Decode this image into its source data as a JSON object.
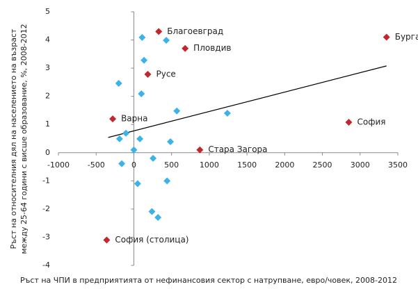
{
  "chart_data": {
    "type": "scatter",
    "xlabel": "Ръст на ЧПИ в предприятията от нефинансовия сектор с натрупване, евро/човек, 2008-2012",
    "ylabel": [
      "Ръст на относителния дял на населението на възраст",
      "между 25-64 години с висше образование, %, 2008-2012"
    ],
    "xlim": [
      -1000,
      3500
    ],
    "xticks": [
      -1000,
      -500,
      0,
      500,
      1000,
      1500,
      2000,
      2500,
      3000,
      3500
    ],
    "ylim": [
      -4,
      5
    ],
    "yticks": [
      -4,
      -3,
      -2,
      -1,
      0,
      1,
      2,
      3,
      4,
      5
    ],
    "series": [
      {
        "color": "#3bb3e8",
        "x": [
          110,
          430,
          135,
          -200,
          100,
          570,
          1240,
          -105,
          -190,
          80,
          485,
          0,
          255,
          -160,
          440,
          50,
          240,
          320
        ],
        "values": [
          4.09,
          3.99,
          3.28,
          2.46,
          2.09,
          1.48,
          1.4,
          0.69,
          0.49,
          0.49,
          0.39,
          0.1,
          -0.2,
          -0.39,
          -1.0,
          -1.1,
          -2.09,
          -2.3
        ]
      },
      {
        "color": "#c0282d",
        "x": [
          330,
          680,
          185,
          -280,
          875,
          2850,
          3350,
          -360
        ],
        "values": [
          4.3,
          3.7,
          2.78,
          1.2,
          0.1,
          1.08,
          4.1,
          -3.1
        ],
        "labels": [
          "Благоевград",
          "Пловдив",
          "Русе",
          "Варна",
          "Стара Загора",
          "София",
          "Бургас",
          "София (столица)"
        ]
      }
    ],
    "trendline": {
      "x": [
        -340,
        3350
      ],
      "values": [
        0.54,
        3.08
      ],
      "color": "#000000"
    }
  }
}
